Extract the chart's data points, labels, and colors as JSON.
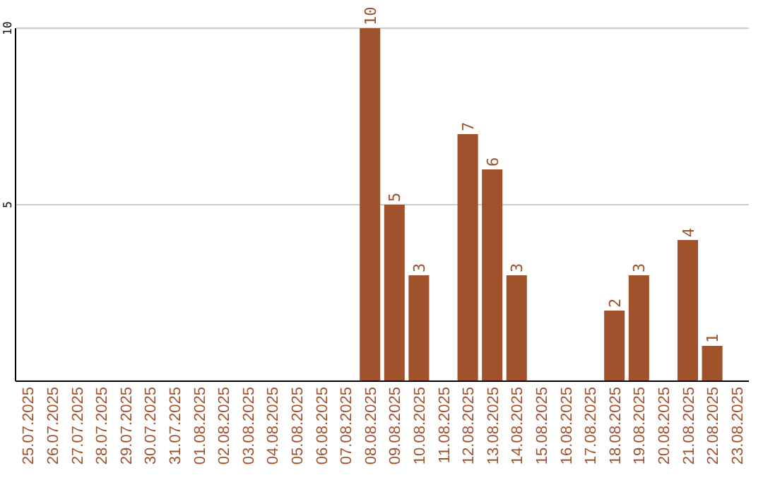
{
  "chart_data": {
    "type": "bar",
    "categories": [
      "25.07.2025",
      "26.07.2025",
      "27.07.2025",
      "28.07.2025",
      "29.07.2025",
      "30.07.2025",
      "31.07.2025",
      "01.08.2025",
      "02.08.2025",
      "03.08.2025",
      "04.08.2025",
      "05.08.2025",
      "06.08.2025",
      "07.08.2025",
      "08.08.2025",
      "09.08.2025",
      "10.08.2025",
      "11.08.2025",
      "12.08.2025",
      "13.08.2025",
      "14.08.2025",
      "15.08.2025",
      "16.08.2025",
      "17.08.2025",
      "18.08.2025",
      "19.08.2025",
      "20.08.2025",
      "21.08.2025",
      "22.08.2025",
      "23.08.2025"
    ],
    "values": [
      0,
      0,
      0,
      0,
      0,
      0,
      0,
      0,
      0,
      0,
      0,
      0,
      0,
      0,
      10,
      5,
      3,
      0,
      7,
      6,
      3,
      0,
      0,
      0,
      2,
      3,
      0,
      4,
      1,
      0
    ],
    "value_labels": [
      null,
      null,
      null,
      null,
      null,
      null,
      null,
      null,
      null,
      null,
      null,
      null,
      null,
      null,
      "10",
      "5",
      "3",
      null,
      "7",
      "6",
      "3",
      null,
      null,
      null,
      "2",
      "3",
      null,
      "4",
      "1",
      null
    ],
    "color": "#a0522d",
    "ylim": [
      0,
      10
    ],
    "yticks": [
      5,
      10
    ],
    "grid": "y"
  }
}
